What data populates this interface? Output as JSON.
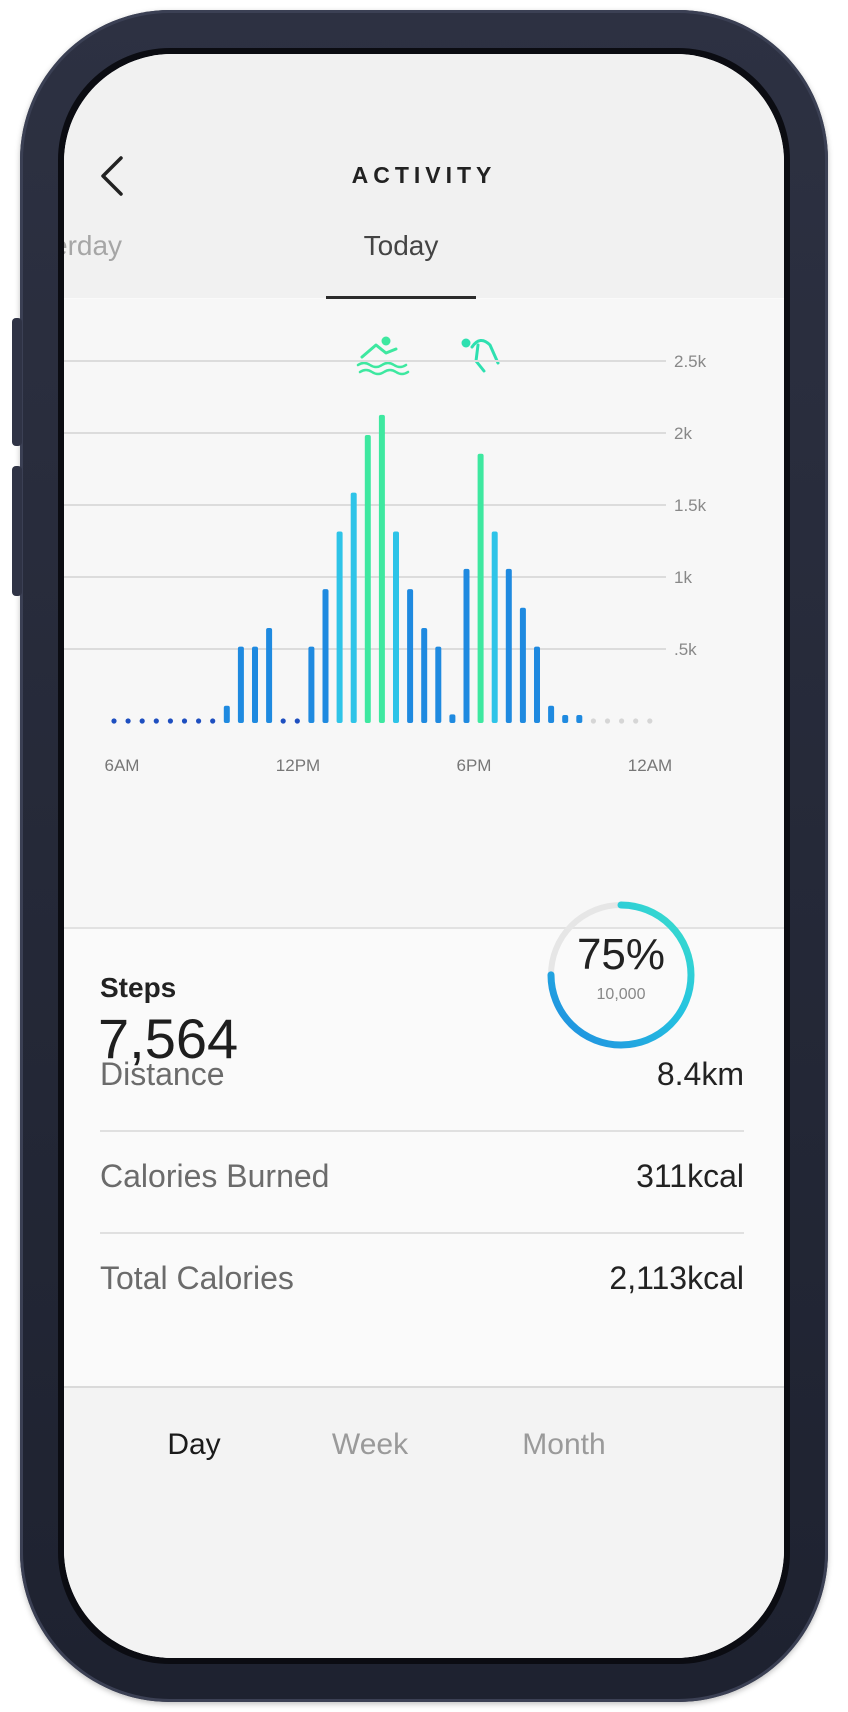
{
  "header": {
    "title": "ACTIVITY",
    "back_icon": "chevron-left-icon"
  },
  "date_tabs": {
    "previous": "erday",
    "current": "Today"
  },
  "workout_icons": [
    "swimming-icon",
    "running-icon"
  ],
  "colors": {
    "bar_blue": "#1f8ae0",
    "bar_cyan": "#2ec4e8",
    "bar_green": "#3ee8a0",
    "dot_dark": "#1e4fc0",
    "dot_light": "#d6d6d6",
    "ring": "#1fb6e0"
  },
  "chart_data": {
    "type": "bar",
    "x_tick_labels": [
      "6AM",
      "12PM",
      "6PM",
      "12AM"
    ],
    "y_tick_labels": [
      ".5k",
      "1k",
      "1.5k",
      "2k",
      "2.5k"
    ],
    "ylim": [
      0,
      2500
    ],
    "grid": true,
    "series": [
      {
        "values": [
          0,
          0,
          0,
          0,
          0,
          0,
          0,
          0,
          120,
          530,
          530,
          660,
          0,
          0,
          530,
          930,
          1330,
          1600,
          2000,
          2140,
          1330,
          930,
          660,
          530,
          60,
          1070,
          1870,
          1330,
          1070,
          800,
          530,
          120,
          50,
          20,
          0,
          0,
          0,
          0,
          0
        ]
      }
    ]
  },
  "steps": {
    "label": "Steps",
    "value": "7,564",
    "progress_percent": "75%",
    "goal": "10,000",
    "progress_fraction": 0.75
  },
  "stats": [
    {
      "label": "Distance",
      "value": "8.4km"
    },
    {
      "label": "Calories Burned",
      "value": "311kcal"
    },
    {
      "label": "Total Calories",
      "value": "2,113kcal"
    }
  ],
  "period_tabs": {
    "day": "Day",
    "week": "Week",
    "month": "Month"
  }
}
